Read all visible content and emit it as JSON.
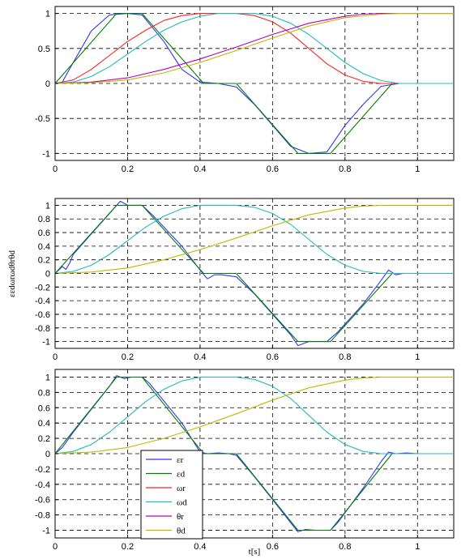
{
  "chart_data": [
    {
      "type": "line",
      "xlim": [
        0,
        1.1
      ],
      "ylim": [
        -1.1,
        1.1
      ],
      "xticks": [
        "0",
        "0.2",
        "0.4",
        "0.6",
        "0.8",
        "1"
      ],
      "yticks": [
        "-1",
        "-0.5",
        "0",
        "0.5",
        "1"
      ],
      "grid": true,
      "series": [
        {
          "color": "#3333ff",
          "points": [
            [
              0,
              0
            ],
            [
              0.02,
              0.02
            ],
            [
              0.05,
              0.3
            ],
            [
              0.1,
              0.75
            ],
            [
              0.15,
              0.98
            ],
            [
              0.2,
              1.0
            ],
            [
              0.24,
              0.98
            ],
            [
              0.3,
              0.6
            ],
            [
              0.35,
              0.2
            ],
            [
              0.4,
              0.02
            ],
            [
              0.45,
              0
            ],
            [
              0.5,
              -0.05
            ],
            [
              0.55,
              -0.3
            ],
            [
              0.6,
              -0.6
            ],
            [
              0.65,
              -0.9
            ],
            [
              0.7,
              -1.0
            ],
            [
              0.75,
              -0.98
            ],
            [
              0.8,
              -0.6
            ],
            [
              0.85,
              -0.3
            ],
            [
              0.9,
              -0.04
            ],
            [
              0.95,
              0
            ],
            [
              1.1,
              0
            ]
          ]
        },
        {
          "color": "#008000",
          "points": [
            [
              0,
              0
            ],
            [
              0.17,
              1.0
            ],
            [
              0.24,
              1.0
            ],
            [
              0.41,
              0
            ],
            [
              0.5,
              0
            ],
            [
              0.67,
              -1.0
            ],
            [
              0.76,
              -1.0
            ],
            [
              0.93,
              0
            ],
            [
              1.1,
              0
            ]
          ]
        },
        {
          "color": "#ff2222",
          "points": [
            [
              0,
              0
            ],
            [
              0.05,
              0.05
            ],
            [
              0.1,
              0.2
            ],
            [
              0.15,
              0.4
            ],
            [
              0.2,
              0.6
            ],
            [
              0.25,
              0.76
            ],
            [
              0.3,
              0.9
            ],
            [
              0.35,
              0.97
            ],
            [
              0.4,
              1.0
            ],
            [
              0.5,
              1.0
            ],
            [
              0.55,
              0.97
            ],
            [
              0.6,
              0.88
            ],
            [
              0.65,
              0.72
            ],
            [
              0.7,
              0.5
            ],
            [
              0.75,
              0.28
            ],
            [
              0.8,
              0.12
            ],
            [
              0.85,
              0.03
            ],
            [
              0.9,
              0
            ],
            [
              1.1,
              0
            ]
          ]
        },
        {
          "color": "#22bbbb",
          "points": [
            [
              0,
              0
            ],
            [
              0.05,
              0.02
            ],
            [
              0.1,
              0.1
            ],
            [
              0.15,
              0.24
            ],
            [
              0.2,
              0.42
            ],
            [
              0.25,
              0.6
            ],
            [
              0.3,
              0.76
            ],
            [
              0.35,
              0.88
            ],
            [
              0.4,
              0.96
            ],
            [
              0.45,
              1.0
            ],
            [
              0.55,
              1.0
            ],
            [
              0.6,
              0.96
            ],
            [
              0.65,
              0.86
            ],
            [
              0.7,
              0.7
            ],
            [
              0.75,
              0.5
            ],
            [
              0.8,
              0.3
            ],
            [
              0.85,
              0.14
            ],
            [
              0.9,
              0.04
            ],
            [
              0.95,
              0
            ],
            [
              1.1,
              0
            ]
          ]
        },
        {
          "color": "#bb00bb",
          "points": [
            [
              0,
              0
            ],
            [
              0.1,
              0.02
            ],
            [
              0.2,
              0.08
            ],
            [
              0.3,
              0.2
            ],
            [
              0.4,
              0.35
            ],
            [
              0.5,
              0.52
            ],
            [
              0.6,
              0.7
            ],
            [
              0.7,
              0.86
            ],
            [
              0.8,
              0.96
            ],
            [
              0.85,
              0.99
            ],
            [
              0.9,
              1.0
            ],
            [
              1.1,
              1.0
            ]
          ]
        },
        {
          "color": "#bbbb00",
          "points": [
            [
              0,
              0
            ],
            [
              0.1,
              0.01
            ],
            [
              0.2,
              0.05
            ],
            [
              0.3,
              0.15
            ],
            [
              0.4,
              0.3
            ],
            [
              0.5,
              0.47
            ],
            [
              0.6,
              0.65
            ],
            [
              0.7,
              0.82
            ],
            [
              0.8,
              0.94
            ],
            [
              0.9,
              0.99
            ],
            [
              0.95,
              1.0
            ],
            [
              1.1,
              1.0
            ]
          ]
        }
      ]
    },
    {
      "type": "line",
      "xlim": [
        0,
        1.1
      ],
      "ylim": [
        -1.1,
        1.1
      ],
      "xticks": [
        "0",
        "0.2",
        "0.4",
        "0.6",
        "0.8",
        "1"
      ],
      "yticks": [
        "-1",
        "-0.8",
        "-0.6",
        "-0.4",
        "-0.2",
        "0",
        "0.2",
        "0.4",
        "0.6",
        "0.8",
        "1"
      ],
      "ylabel": "εεdωrωdθrθd",
      "grid": true,
      "series": [
        {
          "color": "#3333ff",
          "points": [
            [
              0,
              0
            ],
            [
              0.01,
              0.05
            ],
            [
              0.02,
              0.1
            ],
            [
              0.03,
              0.06
            ],
            [
              0.04,
              0.15
            ],
            [
              0.05,
              0.28
            ],
            [
              0.1,
              0.58
            ],
            [
              0.15,
              0.88
            ],
            [
              0.18,
              1.06
            ],
            [
              0.2,
              1.0
            ],
            [
              0.24,
              1.0
            ],
            [
              0.27,
              0.85
            ],
            [
              0.35,
              0.4
            ],
            [
              0.4,
              0.05
            ],
            [
              0.42,
              -0.08
            ],
            [
              0.44,
              -0.02
            ],
            [
              0.46,
              -0.02
            ],
            [
              0.5,
              -0.05
            ],
            [
              0.55,
              -0.3
            ],
            [
              0.6,
              -0.6
            ],
            [
              0.65,
              -0.9
            ],
            [
              0.67,
              -1.06
            ],
            [
              0.7,
              -1.0
            ],
            [
              0.75,
              -1.0
            ],
            [
              0.78,
              -0.86
            ],
            [
              0.85,
              -0.45
            ],
            [
              0.9,
              -0.1
            ],
            [
              0.92,
              0.05
            ],
            [
              0.94,
              -0.02
            ],
            [
              0.96,
              0
            ],
            [
              1.1,
              0
            ]
          ]
        },
        {
          "color": "#008000",
          "points": [
            [
              0,
              0
            ],
            [
              0.17,
              1.0
            ],
            [
              0.24,
              1.0
            ],
            [
              0.41,
              0
            ],
            [
              0.5,
              0
            ],
            [
              0.67,
              -1.0
            ],
            [
              0.76,
              -1.0
            ],
            [
              0.93,
              0
            ],
            [
              1.1,
              0
            ]
          ]
        },
        {
          "color": "#22bbbb",
          "points": [
            [
              0,
              0
            ],
            [
              0.05,
              0.03
            ],
            [
              0.1,
              0.12
            ],
            [
              0.15,
              0.28
            ],
            [
              0.2,
              0.48
            ],
            [
              0.25,
              0.68
            ],
            [
              0.3,
              0.84
            ],
            [
              0.35,
              0.95
            ],
            [
              0.4,
              1.0
            ],
            [
              0.5,
              1.0
            ],
            [
              0.55,
              0.97
            ],
            [
              0.6,
              0.88
            ],
            [
              0.65,
              0.72
            ],
            [
              0.7,
              0.5
            ],
            [
              0.75,
              0.28
            ],
            [
              0.8,
              0.12
            ],
            [
              0.85,
              0.03
            ],
            [
              0.9,
              0
            ],
            [
              1.1,
              0
            ]
          ]
        },
        {
          "color": "#bbbb00",
          "points": [
            [
              0,
              0
            ],
            [
              0.1,
              0.02
            ],
            [
              0.2,
              0.08
            ],
            [
              0.3,
              0.2
            ],
            [
              0.4,
              0.35
            ],
            [
              0.5,
              0.52
            ],
            [
              0.6,
              0.7
            ],
            [
              0.7,
              0.86
            ],
            [
              0.8,
              0.96
            ],
            [
              0.85,
              0.99
            ],
            [
              0.9,
              1.0
            ],
            [
              1.1,
              1.0
            ]
          ]
        }
      ]
    },
    {
      "type": "line",
      "xlim": [
        0,
        1.1
      ],
      "ylim": [
        -1.1,
        1.1
      ],
      "xticks": [
        "0",
        "0.2",
        "0.4",
        "0.6",
        "0.8",
        "1"
      ],
      "yticks": [
        "-1",
        "-0.8",
        "-0.6",
        "-0.4",
        "-0.2",
        "0",
        "0.2",
        "0.4",
        "0.6",
        "0.8",
        "1"
      ],
      "xlabel": "t[s]",
      "grid": true,
      "legend": {
        "placement": "lower-left",
        "entries": [
          {
            "label": "εr",
            "color": "#3333ff"
          },
          {
            "label": "εd",
            "color": "#008000"
          },
          {
            "label": "ωr",
            "color": "#ff2222"
          },
          {
            "label": "ωd",
            "color": "#22bbbb"
          },
          {
            "label": "θr",
            "color": "#bb00bb"
          },
          {
            "label": "θd",
            "color": "#bbbb00"
          }
        ]
      },
      "series": [
        {
          "color": "#3333ff",
          "points": [
            [
              0,
              0
            ],
            [
              0.02,
              0.08
            ],
            [
              0.05,
              0.28
            ],
            [
              0.1,
              0.58
            ],
            [
              0.15,
              0.88
            ],
            [
              0.17,
              1.02
            ],
            [
              0.19,
              0.98
            ],
            [
              0.21,
              1.0
            ],
            [
              0.24,
              1.0
            ],
            [
              0.26,
              0.92
            ],
            [
              0.35,
              0.4
            ],
            [
              0.4,
              0.02
            ],
            [
              0.42,
              0
            ],
            [
              0.45,
              0.01
            ],
            [
              0.48,
              0
            ],
            [
              0.5,
              -0.02
            ],
            [
              0.55,
              -0.3
            ],
            [
              0.6,
              -0.6
            ],
            [
              0.65,
              -0.9
            ],
            [
              0.67,
              -1.02
            ],
            [
              0.69,
              -0.99
            ],
            [
              0.72,
              -1.0
            ],
            [
              0.76,
              -1.0
            ],
            [
              0.78,
              -0.9
            ],
            [
              0.85,
              -0.45
            ],
            [
              0.9,
              -0.1
            ],
            [
              0.92,
              0.02
            ],
            [
              0.94,
              0
            ],
            [
              0.97,
              0.01
            ],
            [
              1.0,
              0
            ],
            [
              1.1,
              0
            ]
          ]
        },
        {
          "color": "#008000",
          "points": [
            [
              0,
              0
            ],
            [
              0.17,
              1.0
            ],
            [
              0.24,
              1.0
            ],
            [
              0.41,
              0
            ],
            [
              0.5,
              0
            ],
            [
              0.67,
              -1.0
            ],
            [
              0.76,
              -1.0
            ],
            [
              0.93,
              0
            ],
            [
              1.1,
              0
            ]
          ]
        },
        {
          "color": "#22bbbb",
          "points": [
            [
              0,
              0
            ],
            [
              0.05,
              0.03
            ],
            [
              0.1,
              0.12
            ],
            [
              0.15,
              0.28
            ],
            [
              0.2,
              0.48
            ],
            [
              0.25,
              0.68
            ],
            [
              0.3,
              0.84
            ],
            [
              0.35,
              0.95
            ],
            [
              0.4,
              1.0
            ],
            [
              0.5,
              1.0
            ],
            [
              0.55,
              0.97
            ],
            [
              0.6,
              0.88
            ],
            [
              0.65,
              0.72
            ],
            [
              0.7,
              0.5
            ],
            [
              0.75,
              0.28
            ],
            [
              0.8,
              0.12
            ],
            [
              0.85,
              0.03
            ],
            [
              0.9,
              0
            ],
            [
              1.1,
              0
            ]
          ]
        },
        {
          "color": "#bbbb00",
          "points": [
            [
              0,
              0
            ],
            [
              0.1,
              0.02
            ],
            [
              0.2,
              0.08
            ],
            [
              0.3,
              0.2
            ],
            [
              0.4,
              0.35
            ],
            [
              0.5,
              0.52
            ],
            [
              0.6,
              0.7
            ],
            [
              0.7,
              0.86
            ],
            [
              0.8,
              0.96
            ],
            [
              0.85,
              0.99
            ],
            [
              0.9,
              1.0
            ],
            [
              1.1,
              1.0
            ]
          ]
        }
      ]
    }
  ]
}
